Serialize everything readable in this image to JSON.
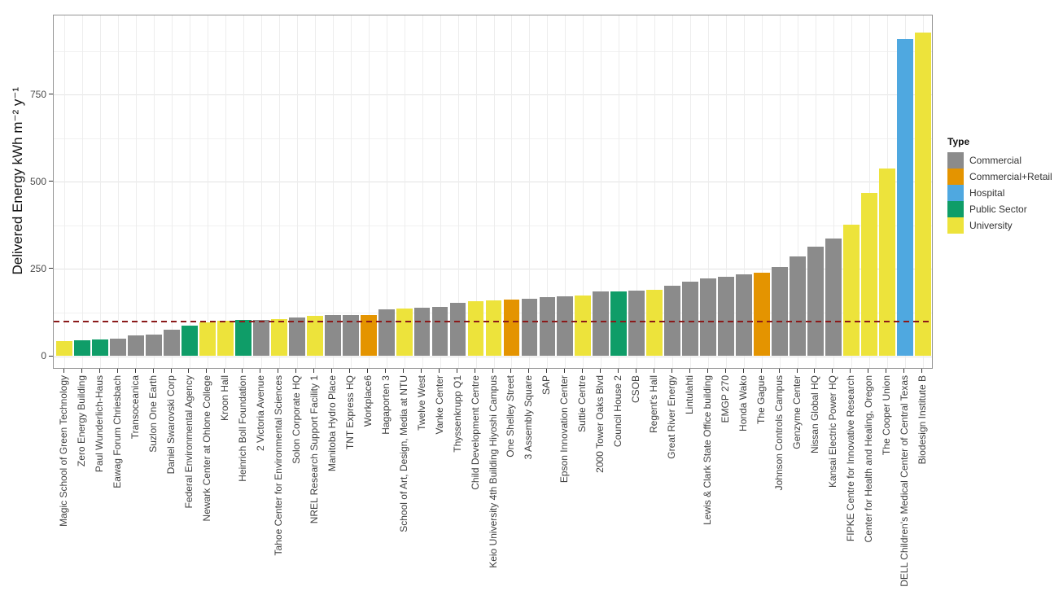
{
  "chart_data": {
    "type": "bar",
    "title": "",
    "xlabel": "",
    "ylabel": "Delivered Energy kWh m⁻² y⁻¹",
    "categories": [
      "Magic School of Green Technology",
      "Zero Energy Building",
      "Paul Wunderlich-Haus",
      "Eawag Forum Chriesbach",
      "Transoceanica",
      "Suzlon One Earth",
      "Daniel Swarovski Corp",
      "Federal Environmental Agency",
      "Newark Center at Ohlone College",
      "Kroon Hall",
      "Heinrich Boll Foundation",
      "2 Victoria Avenue",
      "Tahoe Center for Environmental Sciences",
      "Solon Corporate HQ",
      "NREL Research Support Facility 1",
      "Manitoba Hydro Place",
      "TNT Express HQ",
      "Workplace6",
      "Hagaporten 3",
      "School of Art, Design, Media at NTU",
      "Twelve West",
      "Vanke Center",
      "Thyssenkrupp Q1",
      "Child Development Centre",
      "Keio University 4th Building Hiyoshi Campus",
      "One Shelley Street",
      "3 Assembly Square",
      "SAP",
      "Epson Innovation Center",
      "Suttie Centre",
      "2000 Tower Oaks Blvd",
      "Council House 2",
      "CSOB",
      "Regent's Hall",
      "Great River Energy",
      "Lintulahti",
      "Lewis & Clark State Office building",
      "EMGP 270",
      "Honda Wako",
      "The Gague",
      "Johnson Controls Campus",
      "Genzyme Center",
      "Nissan Global HQ",
      "Kansai Electric Power HQ",
      "FIPKE Centre for Innovative Research",
      "Center for Health and Healing, Oregon",
      "The Cooper Union",
      "DELL Children's Medical Center of Central Texas",
      "Biodesign Institute B"
    ],
    "values": [
      43,
      45,
      49,
      50,
      59,
      63,
      75,
      88,
      98,
      101,
      103,
      104,
      106,
      112,
      115,
      117,
      118,
      119,
      135,
      137,
      140,
      141,
      152,
      158,
      159,
      162,
      165,
      170,
      171,
      173,
      185,
      186,
      187,
      190,
      201,
      214,
      224,
      228,
      234,
      240,
      256,
      287,
      315,
      337,
      377,
      467,
      539,
      910,
      928
    ],
    "types": [
      "University",
      "Public Sector",
      "Public Sector",
      "Commercial",
      "Commercial",
      "Commercial",
      "Commercial",
      "Public Sector",
      "University",
      "University",
      "Public Sector",
      "Commercial",
      "University",
      "Commercial",
      "University",
      "Commercial",
      "Commercial",
      "Commercial+Retail",
      "Commercial",
      "University",
      "Commercial",
      "Commercial",
      "Commercial",
      "University",
      "University",
      "Commercial+Retail",
      "Commercial",
      "Commercial",
      "Commercial",
      "University",
      "Commercial",
      "Public Sector",
      "Commercial",
      "University",
      "Commercial",
      "Commercial",
      "Commercial",
      "Commercial",
      "Commercial",
      "Commercial+Retail",
      "Commercial",
      "Commercial",
      "Commercial",
      "Commercial",
      "University",
      "University",
      "University",
      "Hospital",
      "University"
    ],
    "legend": {
      "title": "Type",
      "position": "right",
      "entries": [
        {
          "label": "Commercial",
          "color": "#8B8B8B"
        },
        {
          "label": "Commercial+Retail",
          "color": "#E49400"
        },
        {
          "label": "Hospital",
          "color": "#4FA8E0"
        },
        {
          "label": "Public Sector",
          "color": "#0F9D68"
        },
        {
          "label": "University",
          "color": "#EDE33B"
        }
      ]
    },
    "y_axis": {
      "ticks": [
        0,
        250,
        500,
        750
      ],
      "tick_labels": [
        "0",
        "250",
        "500",
        "750"
      ],
      "minor_ticks": [
        125,
        375,
        625,
        875
      ],
      "lim": [
        -37,
        978
      ]
    },
    "reference_line": {
      "value": 100,
      "color": "#8B1A1A",
      "style": "dashed"
    },
    "grid": true,
    "bar_width_fraction": 0.9
  }
}
